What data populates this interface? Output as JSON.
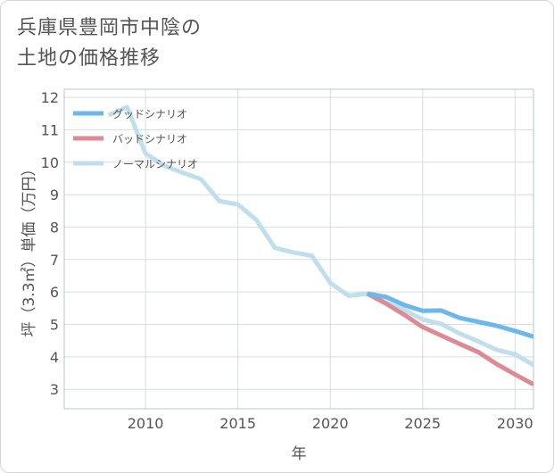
{
  "title_line1": "兵庫県豊岡市中陰の",
  "title_line2": "土地の価格推移",
  "chart_data": {
    "type": "line",
    "xlabel": "年",
    "ylabel": "坪（3.3㎡）単価（万円）",
    "xlim": [
      2005.6,
      2031
    ],
    "ylim": [
      2.4,
      12.25
    ],
    "xticks": [
      2010,
      2015,
      2020,
      2025,
      2030
    ],
    "yticks": [
      3,
      4,
      5,
      6,
      7,
      8,
      9,
      10,
      11,
      12
    ],
    "legend_position": "top-left",
    "series": [
      {
        "name": "グッドシナリオ",
        "color": "#6cb8ec",
        "x": [
          2022,
          2023,
          2024,
          2025,
          2026,
          2027,
          2028,
          2029,
          2030,
          2031
        ],
        "y": [
          5.95,
          5.85,
          5.6,
          5.42,
          5.43,
          5.2,
          5.08,
          4.96,
          4.8,
          4.62
        ]
      },
      {
        "name": "バッドシナリオ",
        "color": "#de8a94",
        "x": [
          2022,
          2023,
          2024,
          2025,
          2026,
          2027,
          2028,
          2029,
          2030,
          2031
        ],
        "y": [
          5.95,
          5.65,
          5.3,
          4.92,
          4.66,
          4.4,
          4.15,
          3.78,
          3.46,
          3.15
        ]
      },
      {
        "name": "ノーマルシナリオ",
        "color": "#c0dfec",
        "x": [
          2008,
          2009,
          2010,
          2011,
          2012,
          2013,
          2014,
          2015,
          2016,
          2017,
          2018,
          2019,
          2020,
          2021,
          2022,
          2023,
          2024,
          2025,
          2026,
          2027,
          2028,
          2029,
          2030,
          2031
        ],
        "y": [
          11.45,
          11.7,
          10.27,
          9.9,
          9.68,
          9.48,
          8.8,
          8.7,
          8.22,
          7.36,
          7.22,
          7.12,
          6.28,
          5.88,
          5.95,
          5.68,
          5.45,
          5.15,
          5.02,
          4.72,
          4.48,
          4.22,
          4.08,
          3.75
        ]
      }
    ]
  }
}
